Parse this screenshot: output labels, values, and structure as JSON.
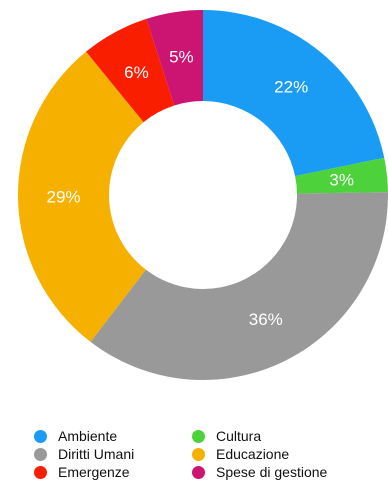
{
  "chart_data": {
    "type": "donut",
    "title": "",
    "series": [
      {
        "name": "Ambiente",
        "value": 22,
        "label": "22%",
        "color": "#1a9cf5"
      },
      {
        "name": "Cultura",
        "value": 3,
        "label": "3%",
        "color": "#4dd23c"
      },
      {
        "name": "Diritti Umani",
        "value": 36,
        "label": "36%",
        "color": "#999999"
      },
      {
        "name": "Educazione",
        "value": 29,
        "label": "29%",
        "color": "#f5b000"
      },
      {
        "name": "Emergenze",
        "value": 6,
        "label": "6%",
        "color": "#fa1e00"
      },
      {
        "name": "Spese di gestione",
        "value": 5,
        "label": "5%",
        "color": "#cc1572"
      }
    ],
    "legend": {
      "placement": "bottom",
      "order": [
        "Ambiente",
        "Cultura",
        "Diritti Umani",
        "Educazione",
        "Emergenze",
        "Spese di gestione"
      ]
    }
  }
}
